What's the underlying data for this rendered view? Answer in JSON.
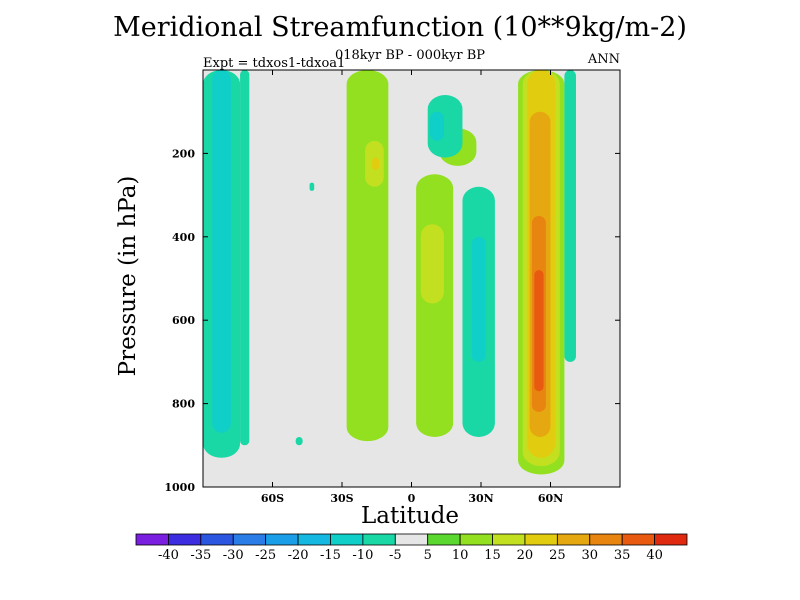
{
  "chart_data": {
    "type": "heatmap",
    "title": "Meridional Streamfunction (10**9kg/m-2)",
    "subtitle_center": "018kyr BP - 000kyr BP",
    "subtitle_left": "Expt = tdxos1-tdxoa1",
    "subtitle_right": "ANN",
    "xlabel": "Latitude",
    "ylabel": "Pressure (in hPa)",
    "x_range": [
      -90,
      90
    ],
    "y_range": [
      0,
      1000
    ],
    "y_inverted": true,
    "x_ticks": [
      {
        "value": -60,
        "label": "60S"
      },
      {
        "value": -30,
        "label": "30S"
      },
      {
        "value": 0,
        "label": "0"
      },
      {
        "value": 30,
        "label": "30N"
      },
      {
        "value": 60,
        "label": "60N"
      }
    ],
    "y_ticks": [
      {
        "value": 200,
        "label": "200"
      },
      {
        "value": 400,
        "label": "400"
      },
      {
        "value": 600,
        "label": "600"
      },
      {
        "value": 800,
        "label": "800"
      },
      {
        "value": 1000,
        "label": "1000"
      }
    ],
    "colorbar": {
      "levels": [
        -40,
        -35,
        -30,
        -25,
        -20,
        -15,
        -10,
        -5,
        5,
        10,
        15,
        20,
        25,
        30,
        35,
        40
      ],
      "colors": [
        "#7a1ee0",
        "#3c2ee0",
        "#2a56e0",
        "#2a7ce6",
        "#1a9ee8",
        "#15b8e0",
        "#10cec8",
        "#1ad8a6",
        "#e6e6e6",
        "#5ad830",
        "#92e020",
        "#c2e020",
        "#e2cc10",
        "#e6a810",
        "#e88410",
        "#e85a10",
        "#e02a10"
      ]
    },
    "regions": [
      {
        "name": "band-70S-outer",
        "level": -10,
        "lat_range": [
          -90,
          -74
        ],
        "p_range": [
          0,
          930
        ]
      },
      {
        "name": "band-70S-core",
        "level": -15,
        "lat_range": [
          -86,
          -78
        ],
        "p_range": [
          0,
          870
        ]
      },
      {
        "name": "band-60S",
        "level": -10,
        "lat_range": [
          -74,
          -70
        ],
        "p_range": [
          0,
          900
        ]
      },
      {
        "name": "spot-40S-upper",
        "level": -10,
        "lat_range": [
          -44,
          -42
        ],
        "p_range": [
          270,
          290
        ]
      },
      {
        "name": "spot-45S-lower",
        "level": -10,
        "lat_range": [
          -50,
          -47
        ],
        "p_range": [
          880,
          900
        ]
      },
      {
        "name": "cell-15S",
        "level": 10,
        "lat_range": [
          -28,
          -10
        ],
        "p_range": [
          0,
          890
        ]
      },
      {
        "name": "cell-15S-upper-core",
        "level": 15,
        "lat_range": [
          -20,
          -12
        ],
        "p_range": [
          170,
          280
        ]
      },
      {
        "name": "cell-15S-upper-max",
        "level": 20,
        "lat_range": [
          -17,
          -14
        ],
        "p_range": [
          210,
          240
        ]
      },
      {
        "name": "cell-10N",
        "level": 10,
        "lat_range": [
          2,
          18
        ],
        "p_range": [
          250,
          880
        ]
      },
      {
        "name": "cell-10N-core",
        "level": 15,
        "lat_range": [
          4,
          14
        ],
        "p_range": [
          370,
          560
        ]
      },
      {
        "name": "cell-10N-upper",
        "level": 10,
        "lat_range": [
          12,
          28
        ],
        "p_range": [
          140,
          230
        ]
      },
      {
        "name": "neg-10N-upper",
        "level": -10,
        "lat_range": [
          7,
          22
        ],
        "p_range": [
          60,
          210
        ]
      },
      {
        "name": "neg-10N-core",
        "level": -15,
        "lat_range": [
          8,
          14
        ],
        "p_range": [
          100,
          170
        ]
      },
      {
        "name": "neg-30N",
        "level": -10,
        "lat_range": [
          22,
          36
        ],
        "p_range": [
          280,
          880
        ]
      },
      {
        "name": "neg-30N-core",
        "level": -15,
        "lat_range": [
          26,
          32
        ],
        "p_range": [
          400,
          700
        ]
      },
      {
        "name": "jet-55N-outer",
        "level": 10,
        "lat_range": [
          46,
          66
        ],
        "p_range": [
          0,
          970
        ]
      },
      {
        "name": "jet-55N-15",
        "level": 15,
        "lat_range": [
          48,
          64
        ],
        "p_range": [
          0,
          950
        ]
      },
      {
        "name": "jet-55N-20",
        "level": 20,
        "lat_range": [
          50,
          62
        ],
        "p_range": [
          0,
          930
        ]
      },
      {
        "name": "jet-55N-25",
        "level": 25,
        "lat_range": [
          51,
          60
        ],
        "p_range": [
          100,
          880
        ]
      },
      {
        "name": "jet-55N-30",
        "level": 30,
        "lat_range": [
          52,
          58
        ],
        "p_range": [
          350,
          820
        ]
      },
      {
        "name": "jet-55N-35",
        "level": 35,
        "lat_range": [
          53,
          57
        ],
        "p_range": [
          480,
          770
        ]
      },
      {
        "name": "neg-70N",
        "level": -10,
        "lat_range": [
          66,
          71
        ],
        "p_range": [
          0,
          700
        ]
      }
    ]
  }
}
